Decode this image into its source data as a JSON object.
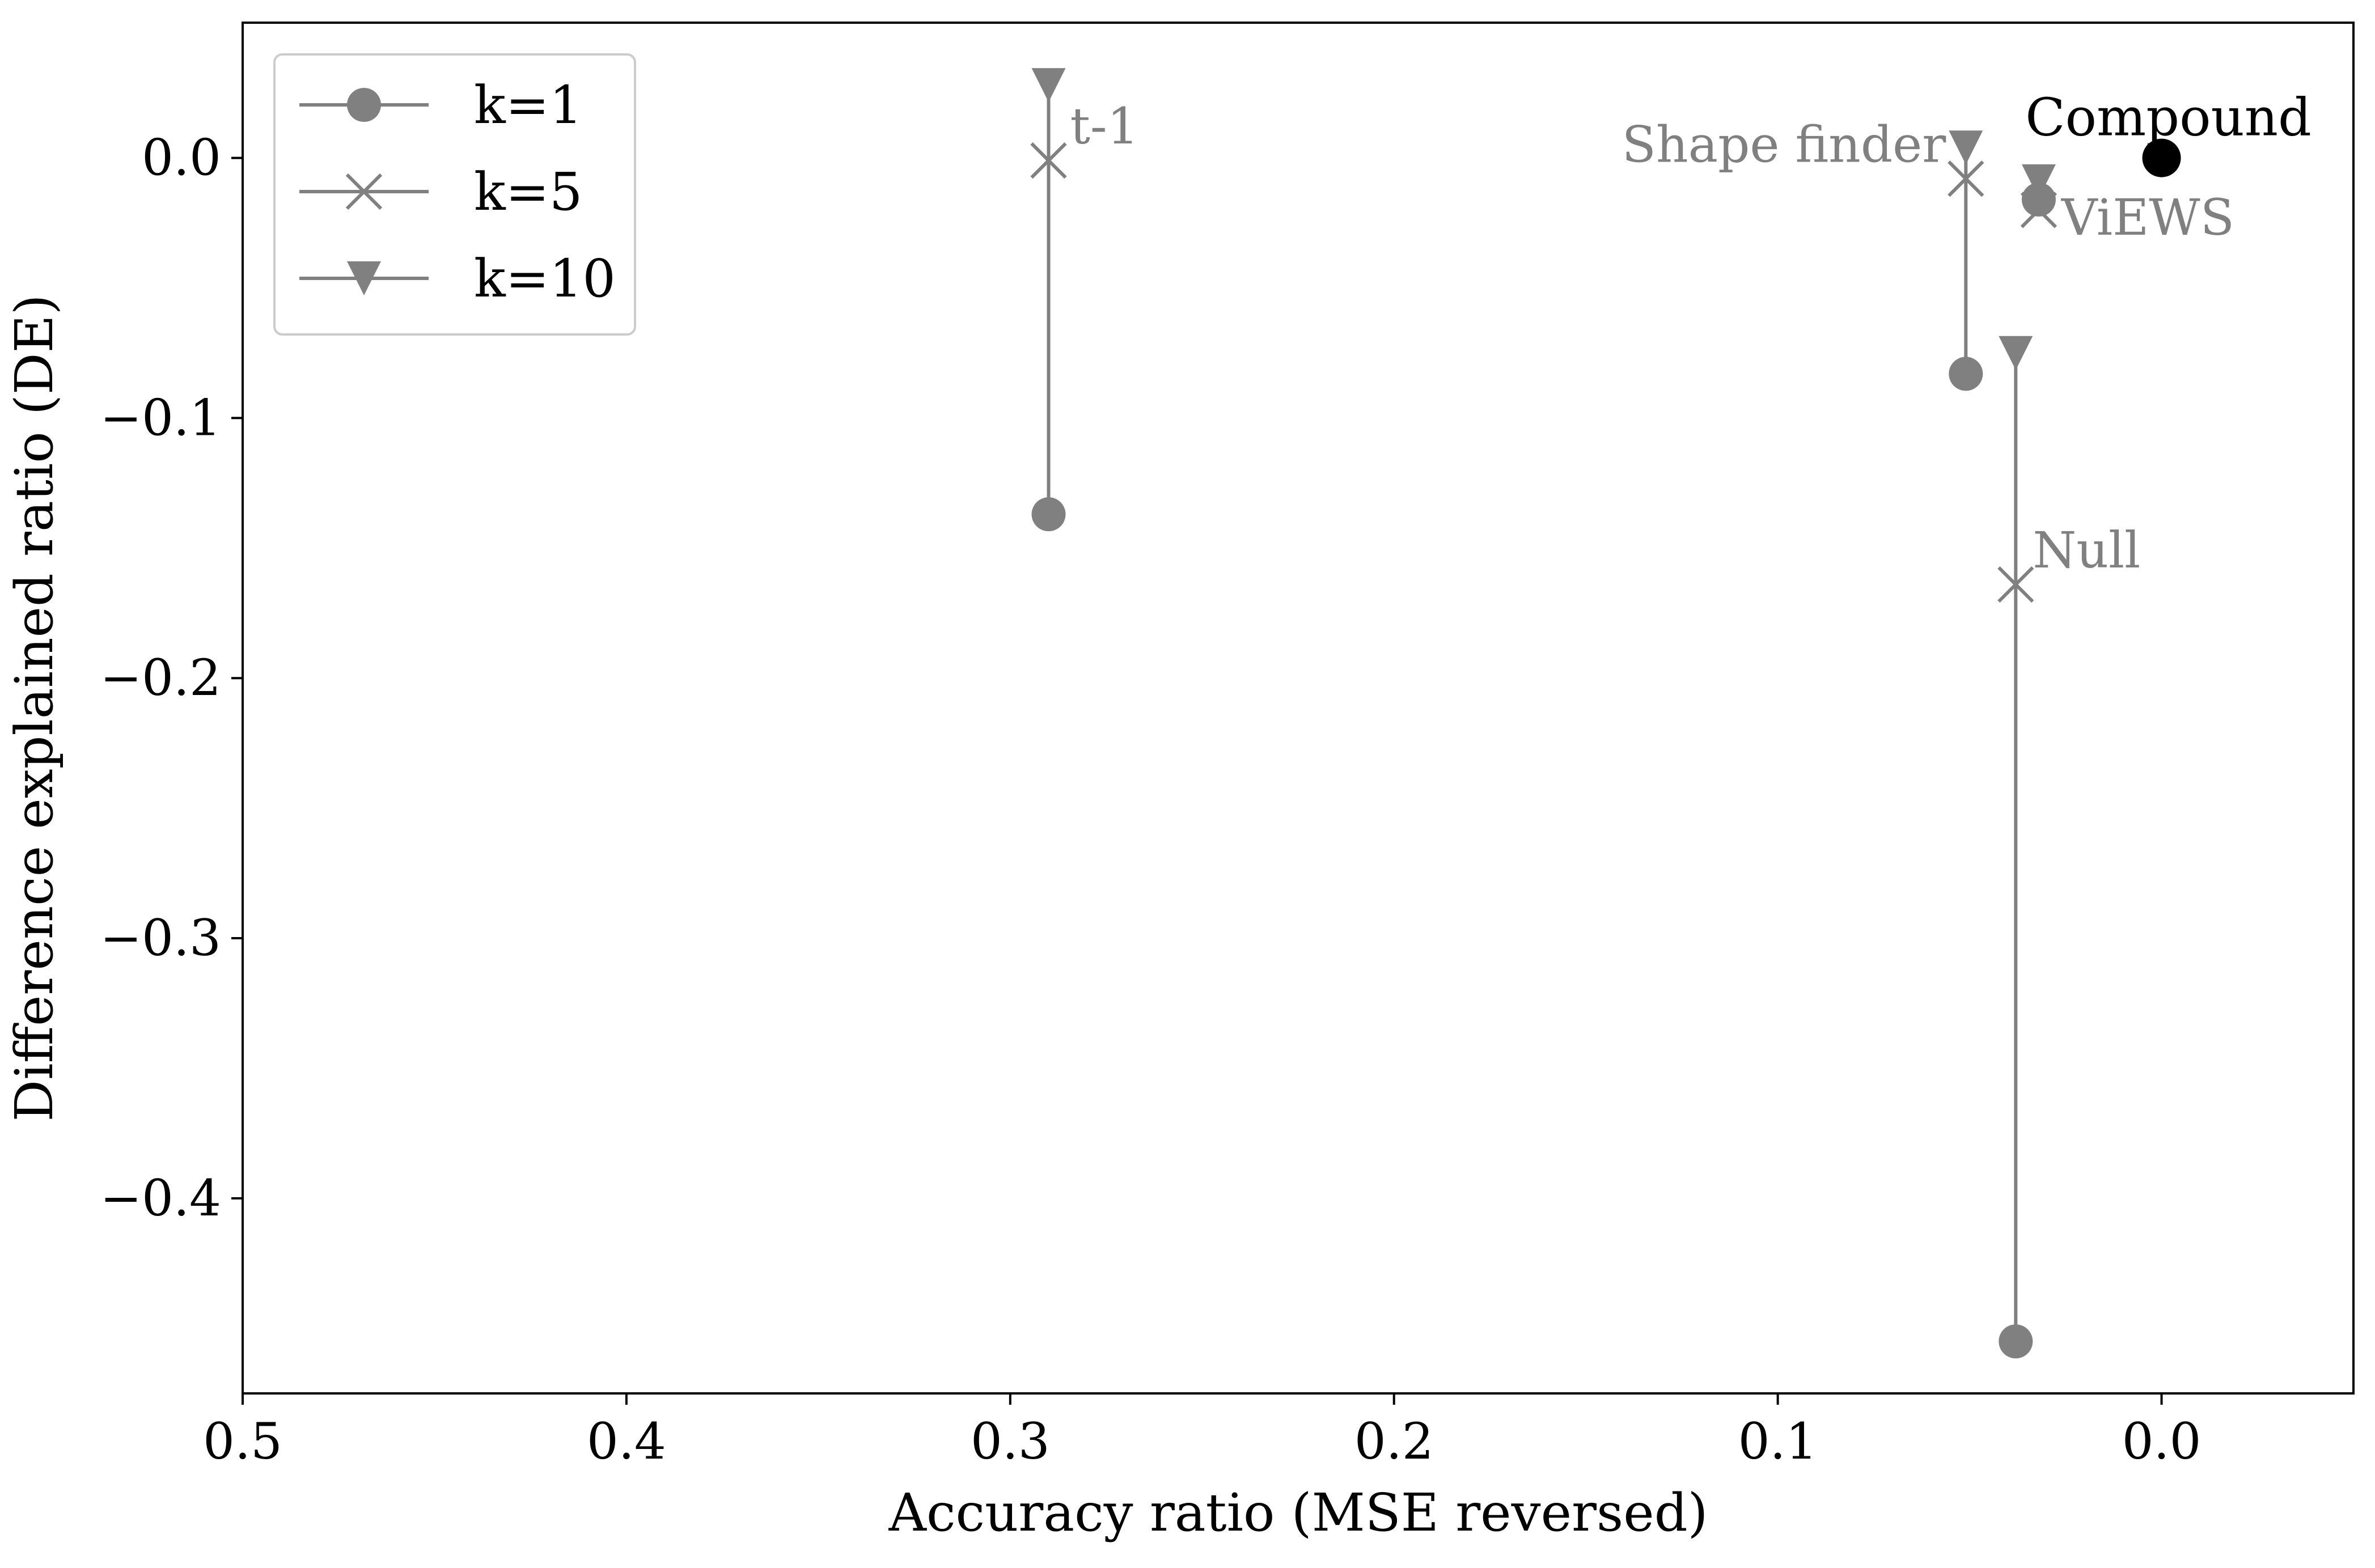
{
  "chart_data": {
    "type": "scatter",
    "xlabel": "Accuracy ratio (MSE reversed)",
    "ylabel": "Difference explained ratio (DE)",
    "xlim": [
      0.5,
      -0.05
    ],
    "x_reversed": true,
    "ylim": [
      -0.475,
      0.052
    ],
    "xticks": [
      0.5,
      0.4,
      0.3,
      0.2,
      0.1,
      0.0
    ],
    "xtick_labels": [
      "0.5",
      "0.4",
      "0.3",
      "0.2",
      "0.1",
      "0.0"
    ],
    "yticks": [
      0.0,
      -0.1,
      -0.2,
      -0.3,
      -0.4
    ],
    "ytick_labels": [
      "0.0",
      "−0.1",
      "−0.2",
      "−0.3",
      "−0.4"
    ],
    "grid": false,
    "legend_position": "top-left",
    "legend": [
      {
        "label": "k=1",
        "marker": "circle"
      },
      {
        "label": "k=5",
        "marker": "x"
      },
      {
        "label": "k=10",
        "marker": "triangle-down"
      }
    ],
    "colors": {
      "model": "#808080",
      "compound": "#000000",
      "axis": "#000000"
    },
    "models": [
      {
        "name": "t-1",
        "x": 0.29,
        "points": [
          {
            "k": "k=1",
            "y": -0.137
          },
          {
            "k": "k=5",
            "y": -0.001
          },
          {
            "k": "k=10",
            "y": 0.028
          }
        ]
      },
      {
        "name": "Shape finder",
        "x": 0.051,
        "points": [
          {
            "k": "k=1",
            "y": -0.083
          },
          {
            "k": "k=5",
            "y": -0.008
          },
          {
            "k": "k=10",
            "y": 0.004
          }
        ]
      },
      {
        "name": "ViEWS",
        "x": 0.032,
        "points": [
          {
            "k": "k=1",
            "y": -0.016
          },
          {
            "k": "k=5",
            "y": -0.02
          },
          {
            "k": "k=10",
            "y": -0.009
          }
        ]
      },
      {
        "name": "Null",
        "x": 0.038,
        "points": [
          {
            "k": "k=1",
            "y": -0.455
          },
          {
            "k": "k=5",
            "y": -0.164
          },
          {
            "k": "k=10",
            "y": -0.075
          }
        ]
      }
    ],
    "compound": {
      "name": "Compound",
      "x": 0.0,
      "y": 0.0
    }
  }
}
